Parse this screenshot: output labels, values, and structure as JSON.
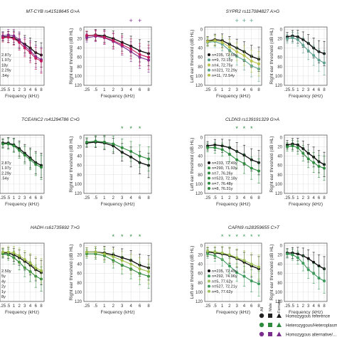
{
  "x_ticks": [
    ".25",
    ".5",
    "1",
    "2",
    "3",
    "4",
    "6",
    "8"
  ],
  "x_values": [
    0.25,
    0.5,
    1,
    2,
    3,
    4,
    6,
    8
  ],
  "xlabel": "Frequency (kHz)",
  "left_ylabel": "Left ear threshold (dB HL)",
  "right_ylabel": "Right ear threshold (dB HL)",
  "y_ticks": [
    "0",
    "20",
    "40",
    "60",
    "80",
    "100",
    "120"
  ],
  "ylim": [
    -5,
    120
  ],
  "colors": {
    "black": "#111111",
    "mtcyb_het": "#7b2d8e",
    "mtcyb_hom": "#c2185b",
    "sypr_het": "#5ba08f",
    "sypr_hom": "#b8c24a",
    "tceanc_het": "#2e8b3e",
    "cldn_het": "#2e8b3e",
    "hadh_het": "#2e8b3e",
    "hadh_hom": "#9fbf4a",
    "capn_het": "#3b9a5a",
    "capn_hom": "#9fc35a",
    "grid": "#e3e3e3",
    "axis": "#444444"
  },
  "legend": {
    "all_label": "All",
    "male_label": "Male",
    "female_label": "Female",
    "rows": [
      {
        "label": "Homozygous reference",
        "color": "#222222"
      },
      {
        "label": "Heterozygous/Heteroplasmic",
        "color": "#2e8b3e"
      },
      {
        "label": "Homozygous alternative/...",
        "color": "#7b2d8e"
      }
    ]
  },
  "panels": [
    {
      "title": "MT-CYB rs41518645 G>A",
      "stars": [
        "+",
        "+"
      ],
      "n_labels": [
        "2.87y",
        "1.97y",
        "18y",
        "2.29y",
        ".54y"
      ]
    },
    {
      "title": "SYPR2 rs117084827 A>G",
      "stars": [
        "+",
        "+",
        "+"
      ],
      "n_labels": [
        "n=235, 72.59y",
        "n=9, 72.15y",
        "n=4, 72.75y",
        "n=321, 72.29y",
        "n=11, 72.54y"
      ]
    },
    {
      "title": "TCEANC2 rs41294786 C>G",
      "stars": [
        "*",
        "*",
        "*"
      ],
      "n_labels": [
        "2.87y",
        "1.97y",
        "2.29y",
        ".54y"
      ]
    },
    {
      "title": "CLDN3 rs139191329 G>A",
      "stars": [
        "*",
        "*",
        "*"
      ],
      "n_labels": [
        "n=233, 72.49y",
        "n=290, 71.93y",
        "n=7, 76.26y",
        "n=523, 72.18y",
        "n=7, 76.48y",
        "n=8, 76.31y"
      ]
    },
    {
      "title": "HADH rs61735692 T>G",
      "stars": [
        "*",
        "*",
        "*",
        "*"
      ],
      "n_labels": [
        "2.50y",
        "5y",
        "4y",
        "2y",
        "1y",
        "8y"
      ]
    },
    {
      "title": "CAPN9 rs28359655 C>T",
      "stars": [
        "*",
        "*",
        "*",
        "*",
        "*",
        "*"
      ],
      "n_labels": [
        "n=235, 72.49y",
        "n=292, 74.96y",
        "n=5, 77.62y",
        "n=527, 72.21y",
        "n=5, 77.62y"
      ]
    }
  ],
  "chart_data": [
    {
      "type": "line",
      "title": "MT-CYB rs41518645 G>A",
      "ear": "left",
      "x": [
        0.25,
        0.5,
        1,
        2,
        3,
        4,
        6,
        8
      ],
      "ylim": [
        -5,
        120
      ],
      "series": [
        {
          "group": "ref",
          "values": [
            16,
            16,
            18,
            25,
            32,
            40,
            50,
            55
          ]
        },
        {
          "group": "het",
          "values": [
            14,
            12,
            14,
            22,
            36,
            46,
            58,
            65
          ]
        },
        {
          "group": "hom",
          "values": [
            18,
            17,
            20,
            28,
            40,
            50,
            62,
            68
          ]
        }
      ]
    },
    {
      "type": "line",
      "title": "MT-CYB rs41518645 G>A",
      "ear": "right",
      "x": [
        0.25,
        0.5,
        1,
        2,
        3,
        4,
        6,
        8
      ],
      "ylim": [
        -5,
        120
      ],
      "series": [
        {
          "group": "ref",
          "values": [
            14,
            12,
            14,
            20,
            28,
            36,
            46,
            52
          ]
        },
        {
          "group": "het",
          "values": [
            18,
            15,
            18,
            26,
            36,
            48,
            60,
            66
          ]
        },
        {
          "group": "hom",
          "values": [
            13,
            13,
            17,
            24,
            33,
            42,
            54,
            60
          ]
        }
      ]
    },
    {
      "type": "line",
      "title": "SYPR2 rs117084827 A>G",
      "ear": "left",
      "x": [
        0.25,
        0.5,
        1,
        2,
        3,
        4,
        6,
        8
      ],
      "ylim": [
        -5,
        120
      ],
      "series": [
        {
          "group": "ref",
          "values": [
            25,
            22,
            24,
            32,
            40,
            48,
            58,
            64
          ]
        },
        {
          "group": "het",
          "values": [
            28,
            26,
            32,
            45,
            58,
            66,
            78,
            85
          ]
        },
        {
          "group": "hom",
          "values": [
            26,
            24,
            28,
            38,
            48,
            56,
            68,
            74
          ]
        }
      ]
    },
    {
      "type": "line",
      "title": "SYPR2 rs117084827 A>G",
      "ear": "right",
      "x": [
        0.25,
        0.5,
        1,
        2,
        3,
        4,
        6,
        8
      ],
      "ylim": [
        -5,
        120
      ],
      "series": [
        {
          "group": "ref",
          "values": [
            16,
            14,
            16,
            22,
            30,
            40,
            48,
            52
          ]
        },
        {
          "group": "het",
          "values": [
            20,
            18,
            22,
            34,
            46,
            56,
            66,
            72
          ]
        }
      ]
    },
    {
      "type": "line",
      "title": "TCEANC2 rs41294786 C>G",
      "ear": "left",
      "x": [
        0.25,
        0.5,
        1,
        2,
        3,
        4,
        6,
        8
      ],
      "ylim": [
        -5,
        120
      ],
      "series": [
        {
          "group": "ref",
          "values": [
            12,
            12,
            16,
            24,
            34,
            44,
            54,
            60
          ]
        },
        {
          "group": "het",
          "values": [
            14,
            14,
            18,
            28,
            38,
            48,
            58,
            64
          ]
        }
      ]
    },
    {
      "type": "line",
      "title": "TCEANC2 rs41294786 C>G",
      "ear": "right",
      "x": [
        0.25,
        0.5,
        1,
        2,
        3,
        4,
        6,
        8
      ],
      "ylim": [
        -5,
        120
      ],
      "series": [
        {
          "group": "ref",
          "values": [
            12,
            10,
            12,
            18,
            32,
            42,
            54,
            60
          ]
        },
        {
          "group": "het",
          "values": [
            10,
            8,
            10,
            14,
            22,
            30,
            40,
            46
          ]
        }
      ]
    },
    {
      "type": "line",
      "title": "CLDN3 rs139191329 G>A",
      "ear": "left",
      "x": [
        0.25,
        0.5,
        1,
        2,
        3,
        4,
        6,
        8
      ],
      "ylim": [
        -5,
        120
      ],
      "series": [
        {
          "group": "ref",
          "values": [
            18,
            16,
            18,
            22,
            30,
            38,
            48,
            54
          ]
        },
        {
          "group": "het",
          "values": [
            22,
            22,
            26,
            36,
            48,
            56,
            66,
            72
          ]
        }
      ]
    },
    {
      "type": "line",
      "title": "CLDN3 rs139191329 G>A",
      "ear": "right",
      "x": [
        0.25,
        0.5,
        1,
        2,
        3,
        4,
        6,
        8
      ],
      "ylim": [
        -5,
        120
      ],
      "series": [
        {
          "group": "ref",
          "values": [
            16,
            14,
            16,
            24,
            34,
            42,
            52,
            58
          ]
        },
        {
          "group": "het",
          "values": [
            20,
            18,
            22,
            34,
            46,
            54,
            62,
            66
          ]
        }
      ]
    },
    {
      "type": "line",
      "title": "HADH rs61735692 T>G",
      "ear": "left",
      "x": [
        0.25,
        0.5,
        1,
        2,
        3,
        4,
        6,
        8
      ],
      "ylim": [
        -5,
        120
      ],
      "series": [
        {
          "group": "ref",
          "values": [
            16,
            16,
            20,
            26,
            34,
            42,
            52,
            58
          ]
        },
        {
          "group": "het",
          "values": [
            18,
            20,
            26,
            36,
            48,
            56,
            66,
            72
          ]
        },
        {
          "group": "hom",
          "values": [
            14,
            14,
            16,
            22,
            30,
            38,
            48,
            54
          ]
        }
      ]
    },
    {
      "type": "line",
      "title": "HADH rs61735692 T>G",
      "ear": "right",
      "x": [
        0.25,
        0.5,
        1,
        2,
        3,
        4,
        6,
        8
      ],
      "ylim": [
        -5,
        120
      ],
      "series": [
        {
          "group": "ref",
          "values": [
            14,
            14,
            16,
            20,
            26,
            32,
            42,
            48
          ]
        },
        {
          "group": "het",
          "values": [
            18,
            18,
            22,
            32,
            42,
            50,
            60,
            66
          ]
        },
        {
          "group": "hom",
          "values": [
            14,
            14,
            18,
            24,
            32,
            40,
            50,
            56
          ]
        }
      ]
    },
    {
      "type": "line",
      "title": "CAPN9 rs28359655 C>T",
      "ear": "left",
      "x": [
        0.25,
        0.5,
        1,
        2,
        3,
        4,
        6,
        8
      ],
      "ylim": [
        -5,
        120
      ],
      "series": [
        {
          "group": "ref",
          "values": [
            14,
            16,
            18,
            22,
            28,
            36,
            44,
            50
          ]
        },
        {
          "group": "het",
          "values": [
            18,
            22,
            30,
            44,
            58,
            66,
            76,
            82
          ]
        },
        {
          "group": "hom",
          "values": [
            12,
            14,
            16,
            20,
            26,
            32,
            40,
            46
          ]
        }
      ]
    },
    {
      "type": "line",
      "title": "CAPN9 rs28359655 C>T",
      "ear": "right",
      "x": [
        0.25,
        0.5,
        1,
        2,
        3,
        4,
        6,
        8
      ],
      "ylim": [
        -5,
        120
      ],
      "series": [
        {
          "group": "ref",
          "values": [
            16,
            16,
            18,
            22,
            28,
            36,
            44,
            50
          ]
        },
        {
          "group": "het",
          "values": [
            18,
            20,
            26,
            38,
            52,
            60,
            70,
            76
          ]
        }
      ]
    }
  ]
}
